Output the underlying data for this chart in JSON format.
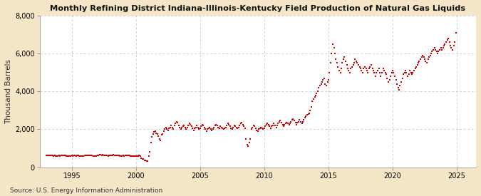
{
  "title": "Monthly Refining District Indiana-Illinois-Kentucky Field Production of Natural Gas Liquids",
  "ylabel": "Thousand Barrels",
  "source": "Source: U.S. Energy Information Administration",
  "fig_bg_color": "#f5e6c8",
  "plot_bg_color": "#ffffff",
  "dot_color": "#cc0000",
  "ylim": [
    0,
    8000
  ],
  "yticks": [
    0,
    2000,
    4000,
    6000,
    8000
  ],
  "xlim_start": 1992.5,
  "xlim_end": 2026.5,
  "xticks": [
    1995,
    2000,
    2005,
    2010,
    2015,
    2020,
    2025
  ],
  "series": [
    [
      1993.0,
      620
    ],
    [
      1993.08,
      610
    ],
    [
      1993.17,
      630
    ],
    [
      1993.25,
      640
    ],
    [
      1993.33,
      615
    ],
    [
      1993.42,
      625
    ],
    [
      1993.5,
      630
    ],
    [
      1993.58,
      600
    ],
    [
      1993.67,
      610
    ],
    [
      1993.75,
      590
    ],
    [
      1993.83,
      580
    ],
    [
      1993.92,
      600
    ],
    [
      1994.0,
      610
    ],
    [
      1994.08,
      600
    ],
    [
      1994.17,
      620
    ],
    [
      1994.25,
      630
    ],
    [
      1994.33,
      610
    ],
    [
      1994.42,
      620
    ],
    [
      1994.5,
      615
    ],
    [
      1994.58,
      600
    ],
    [
      1994.67,
      590
    ],
    [
      1994.75,
      580
    ],
    [
      1994.83,
      570
    ],
    [
      1994.92,
      585
    ],
    [
      1995.0,
      610
    ],
    [
      1995.08,
      600
    ],
    [
      1995.17,
      610
    ],
    [
      1995.25,
      620
    ],
    [
      1995.33,
      605
    ],
    [
      1995.42,
      615
    ],
    [
      1995.5,
      610
    ],
    [
      1995.58,
      600
    ],
    [
      1995.67,
      595
    ],
    [
      1995.75,
      585
    ],
    [
      1995.83,
      575
    ],
    [
      1995.92,
      590
    ],
    [
      1996.0,
      625
    ],
    [
      1996.08,
      615
    ],
    [
      1996.17,
      630
    ],
    [
      1996.25,
      640
    ],
    [
      1996.33,
      620
    ],
    [
      1996.42,
      630
    ],
    [
      1996.5,
      625
    ],
    [
      1996.58,
      615
    ],
    [
      1996.67,
      605
    ],
    [
      1996.75,
      595
    ],
    [
      1996.83,
      585
    ],
    [
      1996.92,
      600
    ],
    [
      1997.0,
      640
    ],
    [
      1997.08,
      630
    ],
    [
      1997.17,
      645
    ],
    [
      1997.25,
      655
    ],
    [
      1997.33,
      635
    ],
    [
      1997.42,
      645
    ],
    [
      1997.5,
      640
    ],
    [
      1997.58,
      630
    ],
    [
      1997.67,
      620
    ],
    [
      1997.75,
      610
    ],
    [
      1997.83,
      600
    ],
    [
      1997.92,
      615
    ],
    [
      1998.0,
      630
    ],
    [
      1998.08,
      620
    ],
    [
      1998.17,
      635
    ],
    [
      1998.25,
      645
    ],
    [
      1998.33,
      625
    ],
    [
      1998.42,
      635
    ],
    [
      1998.5,
      630
    ],
    [
      1998.58,
      620
    ],
    [
      1998.67,
      610
    ],
    [
      1998.75,
      600
    ],
    [
      1998.83,
      590
    ],
    [
      1998.92,
      605
    ],
    [
      1999.0,
      615
    ],
    [
      1999.08,
      605
    ],
    [
      1999.17,
      620
    ],
    [
      1999.25,
      630
    ],
    [
      1999.33,
      610
    ],
    [
      1999.42,
      620
    ],
    [
      1999.5,
      615
    ],
    [
      1999.58,
      605
    ],
    [
      1999.67,
      595
    ],
    [
      1999.75,
      585
    ],
    [
      1999.83,
      575
    ],
    [
      1999.92,
      590
    ],
    [
      2000.0,
      600
    ],
    [
      2000.08,
      590
    ],
    [
      2000.17,
      605
    ],
    [
      2000.25,
      615
    ],
    [
      2000.33,
      595
    ],
    [
      2000.42,
      490
    ],
    [
      2000.5,
      450
    ],
    [
      2000.58,
      430
    ],
    [
      2000.67,
      380
    ],
    [
      2000.75,
      350
    ],
    [
      2000.83,
      330
    ],
    [
      2000.92,
      310
    ],
    [
      2001.0,
      580
    ],
    [
      2001.08,
      800
    ],
    [
      2001.17,
      1300
    ],
    [
      2001.25,
      1600
    ],
    [
      2001.33,
      1750
    ],
    [
      2001.42,
      1850
    ],
    [
      2001.5,
      1900
    ],
    [
      2001.58,
      1800
    ],
    [
      2001.67,
      1750
    ],
    [
      2001.75,
      1650
    ],
    [
      2001.83,
      1500
    ],
    [
      2001.92,
      1400
    ],
    [
      2002.0,
      1700
    ],
    [
      2002.08,
      1750
    ],
    [
      2002.17,
      1900
    ],
    [
      2002.25,
      2000
    ],
    [
      2002.33,
      2100
    ],
    [
      2002.42,
      2000
    ],
    [
      2002.5,
      1950
    ],
    [
      2002.58,
      2050
    ],
    [
      2002.67,
      2100
    ],
    [
      2002.75,
      2200
    ],
    [
      2002.83,
      2100
    ],
    [
      2002.92,
      2000
    ],
    [
      2003.0,
      2200
    ],
    [
      2003.08,
      2300
    ],
    [
      2003.17,
      2400
    ],
    [
      2003.25,
      2350
    ],
    [
      2003.33,
      2200
    ],
    [
      2003.42,
      2100
    ],
    [
      2003.5,
      2000
    ],
    [
      2003.58,
      2100
    ],
    [
      2003.67,
      2150
    ],
    [
      2003.75,
      2200
    ],
    [
      2003.83,
      2100
    ],
    [
      2003.92,
      2000
    ],
    [
      2004.0,
      2100
    ],
    [
      2004.08,
      2200
    ],
    [
      2004.17,
      2300
    ],
    [
      2004.25,
      2250
    ],
    [
      2004.33,
      2150
    ],
    [
      2004.42,
      2050
    ],
    [
      2004.5,
      1950
    ],
    [
      2004.58,
      2050
    ],
    [
      2004.67,
      2100
    ],
    [
      2004.75,
      2200
    ],
    [
      2004.83,
      2100
    ],
    [
      2004.92,
      2000
    ],
    [
      2005.0,
      2050
    ],
    [
      2005.08,
      2150
    ],
    [
      2005.17,
      2250
    ],
    [
      2005.25,
      2200
    ],
    [
      2005.33,
      2100
    ],
    [
      2005.42,
      2000
    ],
    [
      2005.5,
      1900
    ],
    [
      2005.58,
      2000
    ],
    [
      2005.67,
      2050
    ],
    [
      2005.75,
      2100
    ],
    [
      2005.83,
      2000
    ],
    [
      2005.92,
      1950
    ],
    [
      2006.0,
      2000
    ],
    [
      2006.08,
      2100
    ],
    [
      2006.17,
      2200
    ],
    [
      2006.25,
      2250
    ],
    [
      2006.33,
      2200
    ],
    [
      2006.42,
      2100
    ],
    [
      2006.5,
      2050
    ],
    [
      2006.58,
      2150
    ],
    [
      2006.67,
      2100
    ],
    [
      2006.75,
      2050
    ],
    [
      2006.83,
      2000
    ],
    [
      2006.92,
      2050
    ],
    [
      2007.0,
      2100
    ],
    [
      2007.08,
      2200
    ],
    [
      2007.17,
      2300
    ],
    [
      2007.25,
      2250
    ],
    [
      2007.33,
      2150
    ],
    [
      2007.42,
      2050
    ],
    [
      2007.5,
      2000
    ],
    [
      2007.58,
      2100
    ],
    [
      2007.67,
      2200
    ],
    [
      2007.75,
      2150
    ],
    [
      2007.83,
      2100
    ],
    [
      2007.92,
      2050
    ],
    [
      2008.0,
      2100
    ],
    [
      2008.08,
      2200
    ],
    [
      2008.17,
      2300
    ],
    [
      2008.25,
      2350
    ],
    [
      2008.33,
      2250
    ],
    [
      2008.42,
      2150
    ],
    [
      2008.5,
      2050
    ],
    [
      2008.58,
      1500
    ],
    [
      2008.67,
      1200
    ],
    [
      2008.75,
      1100
    ],
    [
      2008.83,
      1300
    ],
    [
      2008.92,
      1500
    ],
    [
      2009.0,
      2000
    ],
    [
      2009.08,
      2100
    ],
    [
      2009.17,
      2200
    ],
    [
      2009.25,
      2150
    ],
    [
      2009.33,
      2050
    ],
    [
      2009.42,
      1950
    ],
    [
      2009.5,
      1900
    ],
    [
      2009.58,
      2000
    ],
    [
      2009.67,
      2050
    ],
    [
      2009.75,
      2100
    ],
    [
      2009.83,
      2050
    ],
    [
      2009.92,
      2000
    ],
    [
      2010.0,
      2050
    ],
    [
      2010.08,
      2150
    ],
    [
      2010.17,
      2250
    ],
    [
      2010.25,
      2300
    ],
    [
      2010.33,
      2250
    ],
    [
      2010.42,
      2150
    ],
    [
      2010.5,
      2050
    ],
    [
      2010.58,
      2150
    ],
    [
      2010.67,
      2200
    ],
    [
      2010.75,
      2300
    ],
    [
      2010.83,
      2200
    ],
    [
      2010.92,
      2100
    ],
    [
      2011.0,
      2200
    ],
    [
      2011.08,
      2300
    ],
    [
      2011.17,
      2400
    ],
    [
      2011.25,
      2450
    ],
    [
      2011.33,
      2350
    ],
    [
      2011.42,
      2250
    ],
    [
      2011.5,
      2150
    ],
    [
      2011.58,
      2250
    ],
    [
      2011.67,
      2300
    ],
    [
      2011.75,
      2350
    ],
    [
      2011.83,
      2300
    ],
    [
      2011.92,
      2250
    ],
    [
      2012.0,
      2300
    ],
    [
      2012.08,
      2400
    ],
    [
      2012.17,
      2500
    ],
    [
      2012.25,
      2550
    ],
    [
      2012.33,
      2450
    ],
    [
      2012.42,
      2350
    ],
    [
      2012.5,
      2250
    ],
    [
      2012.58,
      2350
    ],
    [
      2012.67,
      2400
    ],
    [
      2012.75,
      2500
    ],
    [
      2012.83,
      2400
    ],
    [
      2012.92,
      2300
    ],
    [
      2013.0,
      2400
    ],
    [
      2013.08,
      2500
    ],
    [
      2013.17,
      2600
    ],
    [
      2013.25,
      2700
    ],
    [
      2013.33,
      2750
    ],
    [
      2013.42,
      2800
    ],
    [
      2013.5,
      2850
    ],
    [
      2013.58,
      3000
    ],
    [
      2013.67,
      3200
    ],
    [
      2013.75,
      3500
    ],
    [
      2013.83,
      3600
    ],
    [
      2013.92,
      3700
    ],
    [
      2014.0,
      3800
    ],
    [
      2014.08,
      3900
    ],
    [
      2014.17,
      4000
    ],
    [
      2014.25,
      4200
    ],
    [
      2014.33,
      4300
    ],
    [
      2014.42,
      4400
    ],
    [
      2014.5,
      4500
    ],
    [
      2014.58,
      4600
    ],
    [
      2014.67,
      4700
    ],
    [
      2014.75,
      4400
    ],
    [
      2014.83,
      4300
    ],
    [
      2014.92,
      4500
    ],
    [
      2015.0,
      4600
    ],
    [
      2015.08,
      5000
    ],
    [
      2015.17,
      5500
    ],
    [
      2015.25,
      6000
    ],
    [
      2015.33,
      6500
    ],
    [
      2015.42,
      6300
    ],
    [
      2015.5,
      6000
    ],
    [
      2015.58,
      5700
    ],
    [
      2015.67,
      5500
    ],
    [
      2015.75,
      5300
    ],
    [
      2015.83,
      5100
    ],
    [
      2015.92,
      5000
    ],
    [
      2016.0,
      5200
    ],
    [
      2016.08,
      5500
    ],
    [
      2016.17,
      5700
    ],
    [
      2016.25,
      5800
    ],
    [
      2016.33,
      5600
    ],
    [
      2016.42,
      5400
    ],
    [
      2016.5,
      5200
    ],
    [
      2016.58,
      5100
    ],
    [
      2016.67,
      5000
    ],
    [
      2016.75,
      5200
    ],
    [
      2016.83,
      5300
    ],
    [
      2016.92,
      5400
    ],
    [
      2017.0,
      5500
    ],
    [
      2017.08,
      5700
    ],
    [
      2017.17,
      5600
    ],
    [
      2017.25,
      5500
    ],
    [
      2017.33,
      5400
    ],
    [
      2017.42,
      5300
    ],
    [
      2017.5,
      5200
    ],
    [
      2017.58,
      5100
    ],
    [
      2017.67,
      5000
    ],
    [
      2017.75,
      5200
    ],
    [
      2017.83,
      5300
    ],
    [
      2017.92,
      5200
    ],
    [
      2018.0,
      5100
    ],
    [
      2018.08,
      5000
    ],
    [
      2018.17,
      5200
    ],
    [
      2018.25,
      5300
    ],
    [
      2018.33,
      5400
    ],
    [
      2018.42,
      5200
    ],
    [
      2018.5,
      5100
    ],
    [
      2018.58,
      5000
    ],
    [
      2018.67,
      4800
    ],
    [
      2018.75,
      5000
    ],
    [
      2018.83,
      5100
    ],
    [
      2018.92,
      5200
    ],
    [
      2019.0,
      5000
    ],
    [
      2019.08,
      4800
    ],
    [
      2019.17,
      5000
    ],
    [
      2019.25,
      5200
    ],
    [
      2019.33,
      5100
    ],
    [
      2019.42,
      5000
    ],
    [
      2019.5,
      4900
    ],
    [
      2019.58,
      4700
    ],
    [
      2019.67,
      4500
    ],
    [
      2019.75,
      4600
    ],
    [
      2019.83,
      4800
    ],
    [
      2019.92,
      5000
    ],
    [
      2020.0,
      5100
    ],
    [
      2020.08,
      5000
    ],
    [
      2020.17,
      4800
    ],
    [
      2020.25,
      4600
    ],
    [
      2020.33,
      4400
    ],
    [
      2020.42,
      4200
    ],
    [
      2020.5,
      4100
    ],
    [
      2020.58,
      4300
    ],
    [
      2020.67,
      4500
    ],
    [
      2020.75,
      4700
    ],
    [
      2020.83,
      4900
    ],
    [
      2020.92,
      5000
    ],
    [
      2021.0,
      5100
    ],
    [
      2021.08,
      5000
    ],
    [
      2021.17,
      4800
    ],
    [
      2021.25,
      4900
    ],
    [
      2021.33,
      5100
    ],
    [
      2021.42,
      5000
    ],
    [
      2021.5,
      4900
    ],
    [
      2021.58,
      5000
    ],
    [
      2021.67,
      5100
    ],
    [
      2021.75,
      5200
    ],
    [
      2021.83,
      5300
    ],
    [
      2021.92,
      5400
    ],
    [
      2022.0,
      5500
    ],
    [
      2022.08,
      5600
    ],
    [
      2022.17,
      5700
    ],
    [
      2022.25,
      5800
    ],
    [
      2022.33,
      5900
    ],
    [
      2022.42,
      5800
    ],
    [
      2022.5,
      5700
    ],
    [
      2022.58,
      5600
    ],
    [
      2022.67,
      5500
    ],
    [
      2022.75,
      5700
    ],
    [
      2022.83,
      5800
    ],
    [
      2022.92,
      5900
    ],
    [
      2023.0,
      6000
    ],
    [
      2023.08,
      6100
    ],
    [
      2023.17,
      6200
    ],
    [
      2023.25,
      6300
    ],
    [
      2023.33,
      6200
    ],
    [
      2023.42,
      6100
    ],
    [
      2023.5,
      6000
    ],
    [
      2023.58,
      6100
    ],
    [
      2023.67,
      6200
    ],
    [
      2023.75,
      6300
    ],
    [
      2023.83,
      6200
    ],
    [
      2023.92,
      6300
    ],
    [
      2024.0,
      6400
    ],
    [
      2024.08,
      6500
    ],
    [
      2024.17,
      6600
    ],
    [
      2024.25,
      6700
    ],
    [
      2024.33,
      6800
    ],
    [
      2024.42,
      6600
    ],
    [
      2024.5,
      6400
    ],
    [
      2024.58,
      6300
    ],
    [
      2024.67,
      6200
    ],
    [
      2024.75,
      6400
    ],
    [
      2024.83,
      6600
    ],
    [
      2024.92,
      7100
    ]
  ]
}
